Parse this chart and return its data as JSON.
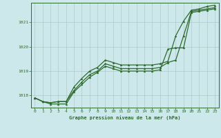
{
  "title": "Graphe pression niveau de la mer (hPa)",
  "background_color": "#cde8ea",
  "grid_color": "#b0c8ca",
  "line_color": "#2d6a2d",
  "marker_color": "#2d6a2d",
  "xlim": [
    -0.5,
    23.5
  ],
  "ylim": [
    1017.5,
    1021.8
  ],
  "yticks": [
    1018,
    1019,
    1020,
    1021
  ],
  "xticks": [
    0,
    1,
    2,
    3,
    4,
    5,
    6,
    7,
    8,
    9,
    10,
    11,
    12,
    13,
    14,
    15,
    16,
    17,
    18,
    19,
    20,
    21,
    22,
    23
  ],
  "series": [
    [
      1017.9,
      1017.75,
      1017.7,
      1017.75,
      1017.75,
      1018.35,
      1018.7,
      1019.0,
      1019.15,
      1019.45,
      1019.35,
      1019.25,
      1019.25,
      1019.25,
      1019.25,
      1019.25,
      1019.3,
      1019.4,
      1020.45,
      1021.05,
      1021.5,
      1021.55,
      1021.65,
      1021.7
    ],
    [
      1017.9,
      1017.75,
      1017.7,
      1017.75,
      1017.75,
      1018.2,
      1018.55,
      1018.85,
      1019.0,
      1019.3,
      1019.2,
      1019.1,
      1019.1,
      1019.1,
      1019.1,
      1019.1,
      1019.15,
      1019.35,
      1019.45,
      1020.45,
      1021.45,
      1021.5,
      1021.55,
      1021.6
    ],
    [
      1017.9,
      1017.75,
      1017.65,
      1017.65,
      1017.65,
      1018.15,
      1018.45,
      1018.75,
      1018.95,
      1019.2,
      1019.1,
      1019.0,
      1019.0,
      1019.0,
      1019.0,
      1019.0,
      1019.05,
      1019.9,
      1019.95,
      1019.95,
      1021.4,
      1021.45,
      1021.5,
      1021.55
    ]
  ]
}
